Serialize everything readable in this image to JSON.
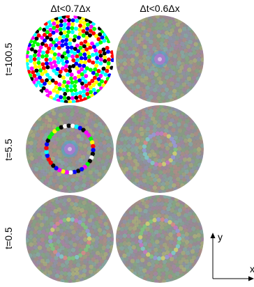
{
  "columns": [
    {
      "title": "Δt<0.7Δx"
    },
    {
      "title": "Δt<0.6Δx"
    }
  ],
  "rows": [
    {
      "label": "t=100.5"
    },
    {
      "label": "t=5.5"
    },
    {
      "label": "t=0.5"
    }
  ],
  "axes": {
    "x": "x",
    "y": "y"
  },
  "colors": {
    "vivid": [
      "#ff0000",
      "#00ff00",
      "#0000ff",
      "#ffff00",
      "#ff00ff",
      "#00ffff",
      "#000000",
      "#ffffff"
    ],
    "muted_base": "#8a8f86",
    "pastels": [
      "#c978c9",
      "#7fc97f",
      "#9a9ae0",
      "#d8d870",
      "#e08a8a",
      "#80d0d0"
    ]
  }
}
